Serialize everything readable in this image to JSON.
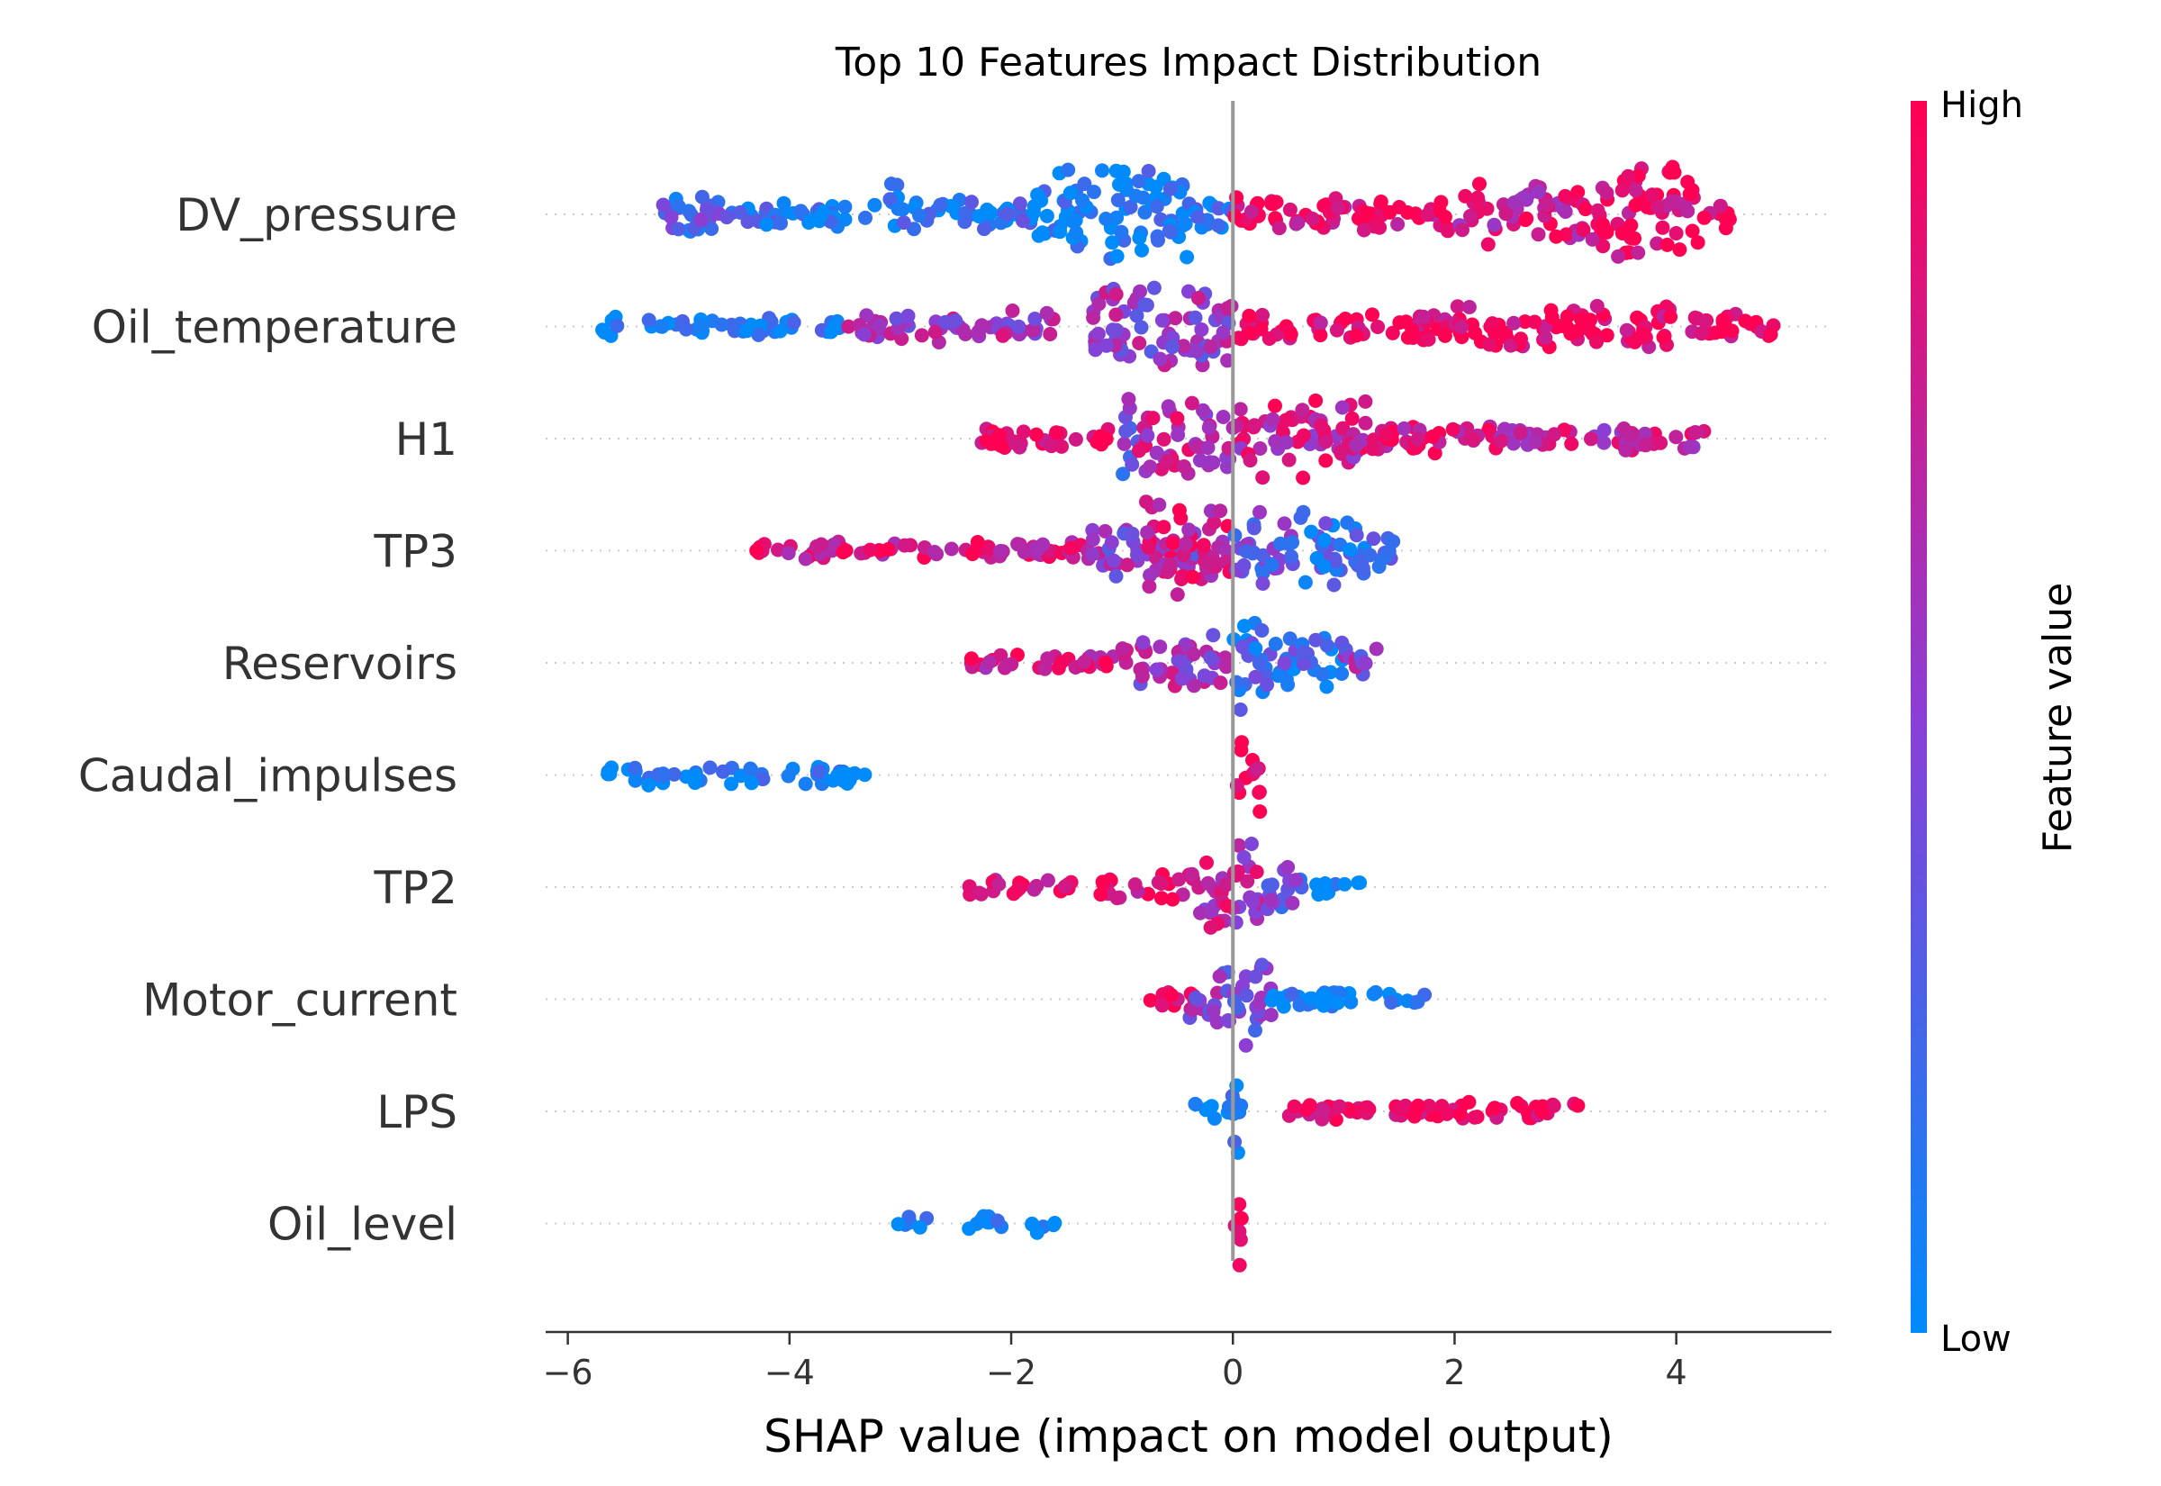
{
  "chart_data": {
    "type": "scatter",
    "subtype": "shap-beeswarm",
    "title": "Top 10 Features Impact Distribution",
    "xlabel": "SHAP value (impact on model output)",
    "xlim": [
      -6.2,
      5.4
    ],
    "xticks": [
      -6,
      -4,
      -2,
      0,
      2,
      4
    ],
    "xtick_labels": [
      "−6",
      "−4",
      "−2",
      "0",
      "2",
      "4"
    ],
    "grid": "dotted horizontal per feature",
    "colorbar": {
      "title": "Feature value",
      "high_label": "High",
      "low_label": "Low",
      "low_color": "#008bfb",
      "high_color": "#ff0052"
    },
    "features": [
      {
        "name": "DV_pressure",
        "segments": [
          {
            "from": -5.2,
            "to": -4.5,
            "width": 0.45,
            "value": 0.3
          },
          {
            "from": -4.5,
            "to": -3.2,
            "width": 0.25,
            "value": 0.1
          },
          {
            "from": -3.1,
            "to": -3.0,
            "width": 0.95,
            "value": 0.05
          },
          {
            "from": -3.0,
            "to": -1.8,
            "width": 0.3,
            "value": 0.15
          },
          {
            "from": -1.8,
            "to": -0.4,
            "width": 0.85,
            "value": 0.05
          },
          {
            "from": -0.4,
            "to": 0.0,
            "width": 0.4,
            "value": 0.2
          },
          {
            "from": 0.0,
            "to": 2.0,
            "width": 0.35,
            "value": 0.92
          },
          {
            "from": 2.0,
            "to": 3.2,
            "width": 0.6,
            "value": 0.8
          },
          {
            "from": 3.2,
            "to": 4.2,
            "width": 0.95,
            "value": 0.95
          },
          {
            "from": 4.2,
            "to": 4.5,
            "width": 0.3,
            "value": 0.98
          }
        ]
      },
      {
        "name": "Oil_temperature",
        "segments": [
          {
            "from": -5.7,
            "to": -5.5,
            "width": 0.2,
            "value": 0.05
          },
          {
            "from": -5.3,
            "to": -3.5,
            "width": 0.18,
            "value": 0.05
          },
          {
            "from": -3.5,
            "to": -1.6,
            "width": 0.3,
            "value": 0.6
          },
          {
            "from": -1.3,
            "to": -1.15,
            "width": 1.0,
            "value": 0.45
          },
          {
            "from": -1.15,
            "to": 0.0,
            "width": 0.8,
            "value": 0.55
          },
          {
            "from": 0.0,
            "to": 2.0,
            "width": 0.3,
            "value": 0.95
          },
          {
            "from": 2.0,
            "to": 4.0,
            "width": 0.45,
            "value": 0.97
          },
          {
            "from": 4.0,
            "to": 4.9,
            "width": 0.25,
            "value": 0.98
          }
        ]
      },
      {
        "name": "H1",
        "segments": [
          {
            "from": -2.3,
            "to": -1.0,
            "width": 0.2,
            "value": 0.95
          },
          {
            "from": -1.0,
            "to": -0.85,
            "width": 0.9,
            "value": 0.4
          },
          {
            "from": -0.85,
            "to": 0.0,
            "width": 0.75,
            "value": 0.7
          },
          {
            "from": 0.0,
            "to": 1.2,
            "width": 0.75,
            "value": 0.75
          },
          {
            "from": 1.2,
            "to": 2.4,
            "width": 0.3,
            "value": 0.85
          },
          {
            "from": 2.4,
            "to": 4.3,
            "width": 0.25,
            "value": 0.7
          }
        ]
      },
      {
        "name": "TP3",
        "segments": [
          {
            "from": -4.3,
            "to": -1.3,
            "width": 0.18,
            "value": 0.85
          },
          {
            "from": -1.3,
            "to": -0.3,
            "width": 0.5,
            "value": 0.55
          },
          {
            "from": -0.8,
            "to": 0.0,
            "width": 0.9,
            "value": 0.8
          },
          {
            "from": 0.0,
            "to": 0.6,
            "width": 0.7,
            "value": 0.35
          },
          {
            "from": 0.6,
            "to": 1.2,
            "width": 0.75,
            "value": 0.2
          },
          {
            "from": 1.2,
            "to": 1.5,
            "width": 0.35,
            "value": 0.3
          }
        ]
      },
      {
        "name": "Reservoirs",
        "segments": [
          {
            "from": -2.4,
            "to": -1.0,
            "width": 0.2,
            "value": 0.85
          },
          {
            "from": -1.0,
            "to": 0.0,
            "width": 0.55,
            "value": 0.6
          },
          {
            "from": 0.0,
            "to": 0.2,
            "width": 0.95,
            "value": 0.15
          },
          {
            "from": 0.2,
            "to": 1.0,
            "width": 0.6,
            "value": 0.2
          },
          {
            "from": 1.0,
            "to": 1.3,
            "width": 0.35,
            "value": 0.5
          }
        ]
      },
      {
        "name": "Caudal_impulses",
        "segments": [
          {
            "from": -5.65,
            "to": -3.3,
            "width": 0.2,
            "value": 0.02
          },
          {
            "from": 0.0,
            "to": 0.25,
            "width": 0.7,
            "value": 0.98
          }
        ]
      },
      {
        "name": "TP2",
        "segments": [
          {
            "from": -2.4,
            "to": -1.45,
            "width": 0.18,
            "value": 0.9
          },
          {
            "from": -1.2,
            "to": -0.3,
            "width": 0.25,
            "value": 0.92
          },
          {
            "from": -0.3,
            "to": 0.3,
            "width": 0.85,
            "value": 0.7
          },
          {
            "from": 0.3,
            "to": 0.7,
            "width": 0.45,
            "value": 0.35
          },
          {
            "from": 0.7,
            "to": 1.15,
            "width": 0.18,
            "value": 0.05
          }
        ]
      },
      {
        "name": "Motor_current",
        "segments": [
          {
            "from": -0.75,
            "to": -0.3,
            "width": 0.2,
            "value": 0.9
          },
          {
            "from": -0.4,
            "to": 0.0,
            "width": 0.55,
            "value": 0.5
          },
          {
            "from": 0.0,
            "to": 0.35,
            "width": 0.85,
            "value": 0.45
          },
          {
            "from": 0.35,
            "to": 1.85,
            "width": 0.18,
            "value": 0.05
          }
        ]
      },
      {
        "name": "LPS",
        "segments": [
          {
            "from": -0.35,
            "to": 0.1,
            "width": 0.18,
            "value": 0.05
          },
          {
            "from": -0.05,
            "to": 0.05,
            "width": 0.85,
            "value": 0.05
          },
          {
            "from": 0.5,
            "to": 3.15,
            "width": 0.18,
            "value": 0.98
          }
        ]
      },
      {
        "name": "Oil_level",
        "segments": [
          {
            "from": -3.05,
            "to": -2.75,
            "width": 0.18,
            "value": 0.05
          },
          {
            "from": -2.4,
            "to": -2.0,
            "width": 0.18,
            "value": 0.05
          },
          {
            "from": -1.85,
            "to": -1.6,
            "width": 0.18,
            "value": 0.05
          },
          {
            "from": -0.03,
            "to": 0.08,
            "width": 0.85,
            "value": 0.98
          }
        ]
      }
    ]
  }
}
